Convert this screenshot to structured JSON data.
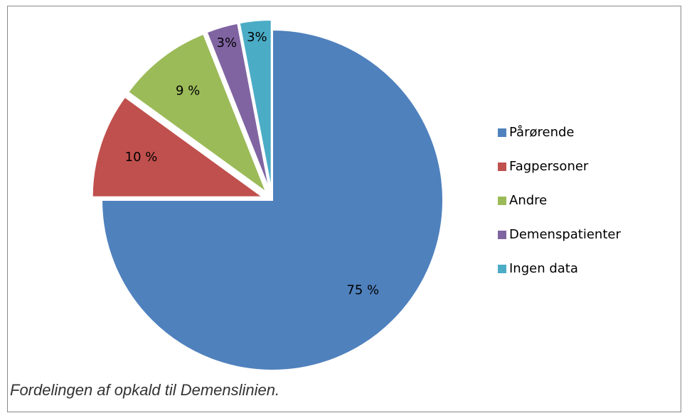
{
  "chart_data": {
    "type": "pie",
    "categories": [
      "Pårørende",
      "Fagpersoner",
      "Andre",
      "Demenspatienter",
      "Ingen data"
    ],
    "values": [
      75,
      10,
      9,
      3,
      3
    ],
    "value_labels": [
      "75 %",
      "10 %",
      "9 %",
      "3%",
      "3%"
    ],
    "colors": [
      "#4f81bd",
      "#c0504d",
      "#9bbb59",
      "#8064a2",
      "#4bacc6"
    ],
    "exploded": [
      false,
      true,
      true,
      true,
      true
    ],
    "legend": "right",
    "caption": "Fordelingen af opkald til Demenslinien."
  }
}
